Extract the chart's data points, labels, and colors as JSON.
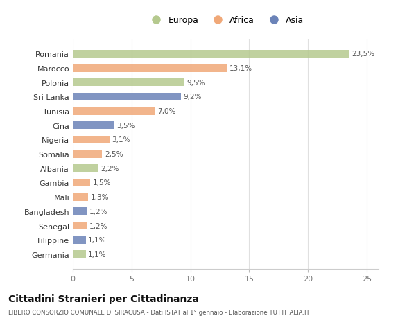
{
  "categories": [
    "Romania",
    "Marocco",
    "Polonia",
    "Sri Lanka",
    "Tunisia",
    "Cina",
    "Nigeria",
    "Somalia",
    "Albania",
    "Gambia",
    "Mali",
    "Bangladesh",
    "Senegal",
    "Filippine",
    "Germania"
  ],
  "values": [
    23.5,
    13.1,
    9.5,
    9.2,
    7.0,
    3.5,
    3.1,
    2.5,
    2.2,
    1.5,
    1.3,
    1.2,
    1.2,
    1.1,
    1.1
  ],
  "labels": [
    "23,5%",
    "13,1%",
    "9,5%",
    "9,2%",
    "7,0%",
    "3,5%",
    "3,1%",
    "2,5%",
    "2,2%",
    "1,5%",
    "1,3%",
    "1,2%",
    "1,2%",
    "1,1%",
    "1,1%"
  ],
  "continents": [
    "Europa",
    "Africa",
    "Europa",
    "Asia",
    "Africa",
    "Asia",
    "Africa",
    "Africa",
    "Europa",
    "Africa",
    "Africa",
    "Asia",
    "Africa",
    "Asia",
    "Europa"
  ],
  "colors": {
    "Europa": "#b5c98e",
    "Africa": "#f0a878",
    "Asia": "#6b83b8"
  },
  "legend_order": [
    "Europa",
    "Africa",
    "Asia"
  ],
  "title": "Cittadini Stranieri per Cittadinanza",
  "subtitle": "LIBERO CONSORZIO COMUNALE DI SIRACUSA - Dati ISTAT al 1° gennaio - Elaborazione TUTTITALIA.IT",
  "xlim": [
    0,
    26
  ],
  "xticks": [
    0,
    5,
    10,
    15,
    20,
    25
  ],
  "background_color": "#ffffff",
  "grid_color": "#e0e0e0",
  "bar_height": 0.55
}
